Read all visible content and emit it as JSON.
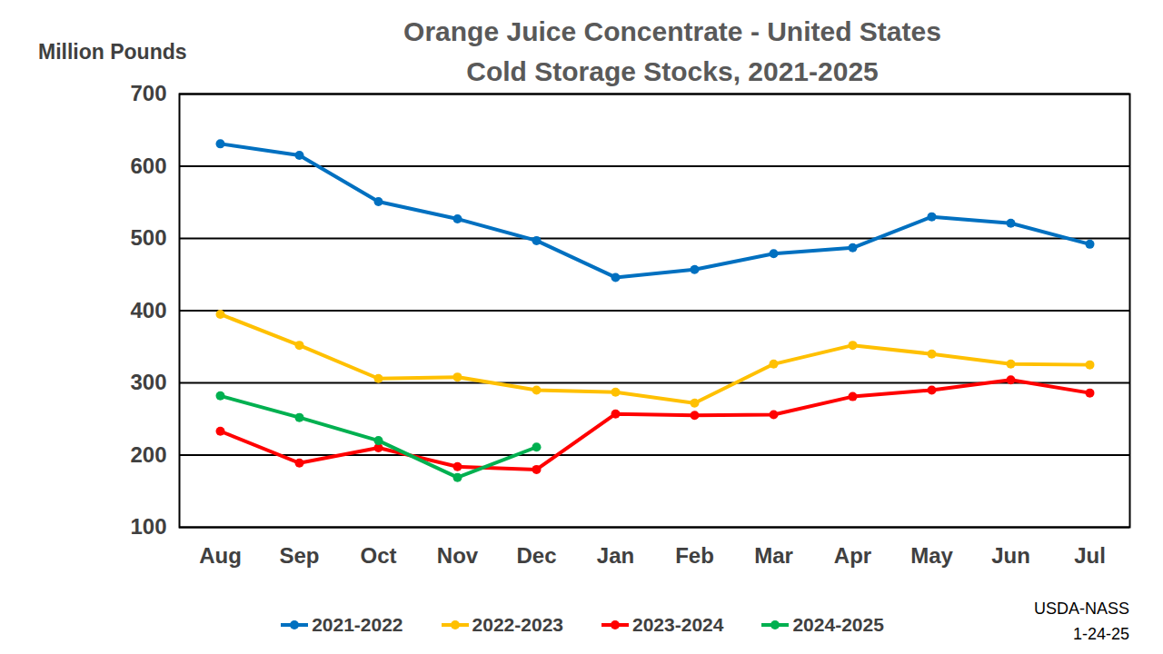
{
  "chart_data": {
    "type": "line",
    "title": "Orange Juice Concentrate - United States",
    "subtitle": "Cold Storage Stocks, 2021-2025",
    "y_label": "Million Pounds",
    "source": "USDA-NASS",
    "date": "1-24-25",
    "categories": [
      "Aug",
      "Sep",
      "Oct",
      "Nov",
      "Dec",
      "Jan",
      "Feb",
      "Mar",
      "Apr",
      "May",
      "Jun",
      "Jul"
    ],
    "series": [
      {
        "name": "2021-2022",
        "color": "#0070c0",
        "values": [
          631,
          615,
          551,
          527,
          497,
          446,
          457,
          479,
          487,
          530,
          521,
          492
        ]
      },
      {
        "name": "2022-2023",
        "color": "#ffc000",
        "values": [
          395,
          352,
          306,
          308,
          290,
          287,
          272,
          326,
          352,
          340,
          326,
          325
        ]
      },
      {
        "name": "2023-2024",
        "color": "#ff0000",
        "values": [
          233,
          189,
          210,
          184,
          180,
          257,
          255,
          256,
          281,
          290,
          304,
          286
        ]
      },
      {
        "name": "2024-2025",
        "color": "#00b050",
        "values": [
          282,
          252,
          220,
          169,
          211,
          null,
          null,
          null,
          null,
          null,
          null,
          null
        ]
      }
    ],
    "ylim": [
      100,
      700
    ],
    "yticks": [
      100,
      200,
      300,
      400,
      500,
      600,
      700
    ],
    "grid": true,
    "marker": "circle",
    "legend": "bottom"
  }
}
